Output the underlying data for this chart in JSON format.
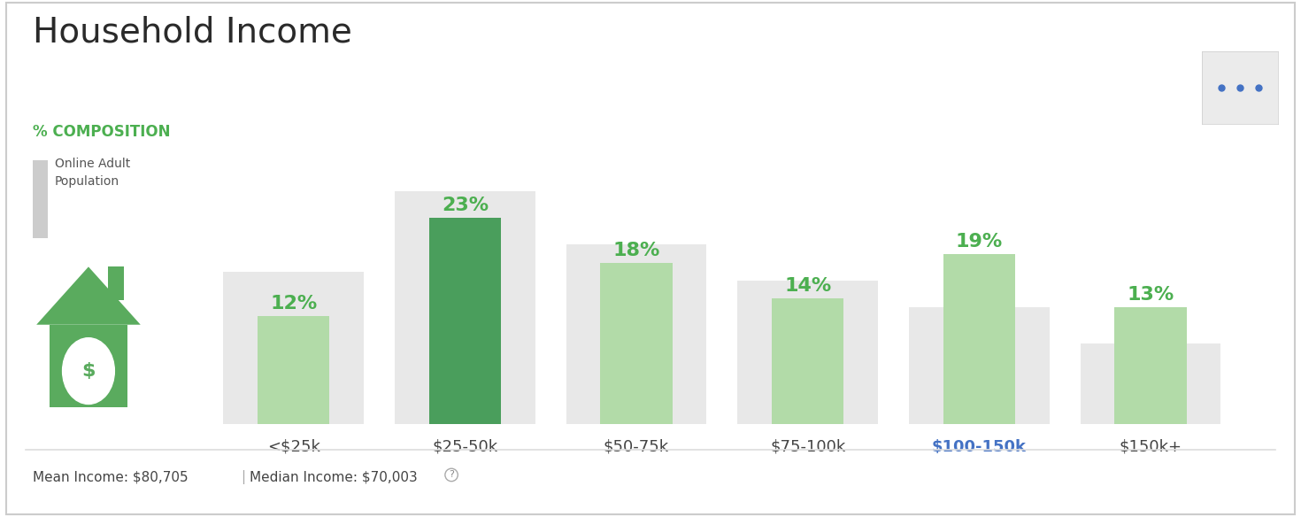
{
  "title": "Household Income",
  "subtitle": "% COMPOSITION",
  "subtitle_color": "#4caf50",
  "categories": [
    "<$25k",
    "$25-50k",
    "$50-75k",
    "$75-100k",
    "$100-150k",
    "$150k+"
  ],
  "switcher_values": [
    12,
    23,
    18,
    14,
    19,
    13
  ],
  "background_values": [
    17,
    26,
    20,
    16,
    13,
    9
  ],
  "bar_color_default": "#b2dba8",
  "bar_color_highlight": "#4a9e5c",
  "bar_color_background": "#e8e8e8",
  "highlight_index": 1,
  "highlight_label_index": 4,
  "highlight_label_color": "#4472c4",
  "xlabel_colors": [
    "#444444",
    "#444444",
    "#444444",
    "#444444",
    "#4472c4",
    "#444444"
  ],
  "value_label_color": "#4caf50",
  "legend_text": "Online Adult\nPopulation",
  "mean_text": "Mean Income: $80,705",
  "median_text": "Median Income: $70,003",
  "background_color": "#ffffff",
  "ylim": [
    0,
    30
  ],
  "bg_bar_width": 0.82,
  "sw_bar_width": 0.42,
  "dots_button_color": "#ebebeb",
  "dots_color": "#4472c4",
  "house_color": "#5aab5e",
  "border_color": "#cccccc",
  "title_fontsize": 28,
  "subtitle_fontsize": 12,
  "pct_fontsize": 16,
  "xlabel_fontsize": 13,
  "footer_fontsize": 11
}
